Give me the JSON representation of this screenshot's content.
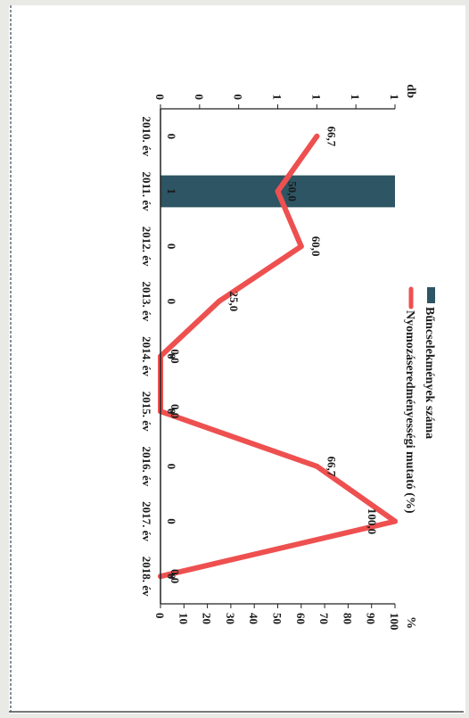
{
  "chart_data": {
    "type": "bar",
    "categories": [
      "2010. év",
      "2011. év",
      "2012. év",
      "2013. év",
      "2014. év",
      "2015. év",
      "2016. év",
      "2017. év",
      "2018. év"
    ],
    "series": [
      {
        "name": "Bűncselekmények száma",
        "type": "bar",
        "axis": "left",
        "values": [
          0,
          1,
          0,
          0,
          0,
          0,
          0,
          0,
          0
        ],
        "labels": [
          "0",
          "1",
          "0",
          "0",
          "0",
          "0",
          "0",
          "0",
          "0"
        ]
      },
      {
        "name": "Nyomozáseredményességi mutató (%)",
        "type": "line",
        "axis": "right",
        "values": [
          66.7,
          50.0,
          60.0,
          25.0,
          0.0,
          0.0,
          66.7,
          100.0,
          0.0
        ],
        "labels": [
          "66,7",
          "50,0",
          "60,0",
          "25,0",
          "0,0",
          "0,0",
          "66,7",
          "100,0",
          "0,0"
        ]
      }
    ],
    "left_axis": {
      "unit": "db",
      "tick_labels": [
        "0",
        "0",
        "0",
        "1",
        "1",
        "1",
        "1"
      ]
    },
    "right_axis": {
      "unit": "%",
      "ticks": [
        0,
        10,
        20,
        30,
        40,
        50,
        60,
        70,
        80,
        90,
        100
      ],
      "tick_labels": [
        "0",
        "10",
        "20",
        "30",
        "40",
        "50",
        "60",
        "70",
        "80",
        "90",
        "100"
      ],
      "ylim": [
        0,
        100
      ]
    },
    "colors": {
      "bar": "#2d5563",
      "line": "#ee5050"
    },
    "legend_position": "top",
    "orientation": "rotated 90 degrees clockwise",
    "grid": false
  }
}
